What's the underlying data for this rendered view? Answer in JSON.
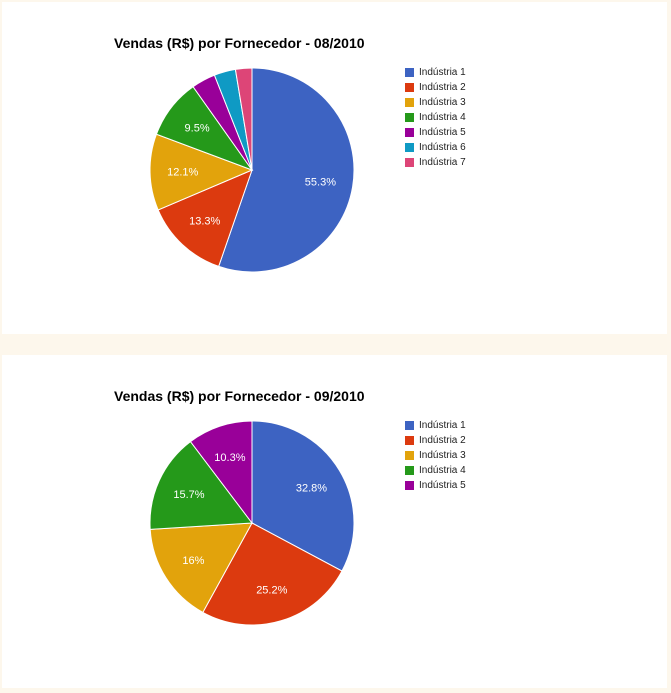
{
  "chart_data": [
    {
      "type": "pie",
      "title": "Vendas (R$) por Fornecedor - 08/2010",
      "categories": [
        "Indústria 1",
        "Indústria 2",
        "Indústria 3",
        "Indústria 4",
        "Indústria 5",
        "Indústria 6",
        "Indústria 7"
      ],
      "values": [
        55.3,
        13.3,
        12.1,
        9.5,
        3.8,
        3.4,
        2.6
      ],
      "slice_labels": [
        "55.3%",
        "13.3%",
        "12.1%",
        "9.5%",
        "",
        "",
        ""
      ],
      "colors": [
        "#3d63c2",
        "#dc3a0f",
        "#e2a30c",
        "#25991a",
        "#990099",
        "#0f9ac4",
        "#dd4577"
      ],
      "legend_position": "right"
    },
    {
      "type": "pie",
      "title": "Vendas (R$) por Fornecedor - 09/2010",
      "categories": [
        "Indústria 1",
        "Indústria 2",
        "Indústria 3",
        "Indústria 4",
        "Indústria 5"
      ],
      "values": [
        32.8,
        25.2,
        16.0,
        15.7,
        10.3
      ],
      "slice_labels": [
        "32.8%",
        "25.2%",
        "16%",
        "15.7%",
        "10.3%"
      ],
      "colors": [
        "#3d63c2",
        "#dc3a0f",
        "#e2a30c",
        "#25991a",
        "#990099"
      ],
      "legend_position": "right"
    }
  ]
}
